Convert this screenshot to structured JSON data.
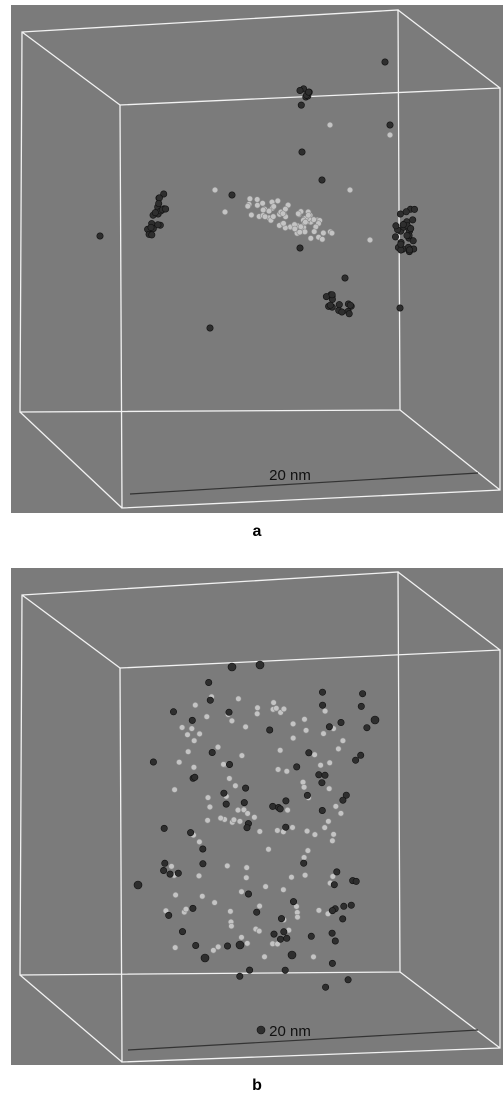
{
  "panels": [
    {
      "scale_label": "20 nm",
      "caption": "a"
    },
    {
      "scale_label": "20 nm",
      "caption": "b"
    }
  ]
}
